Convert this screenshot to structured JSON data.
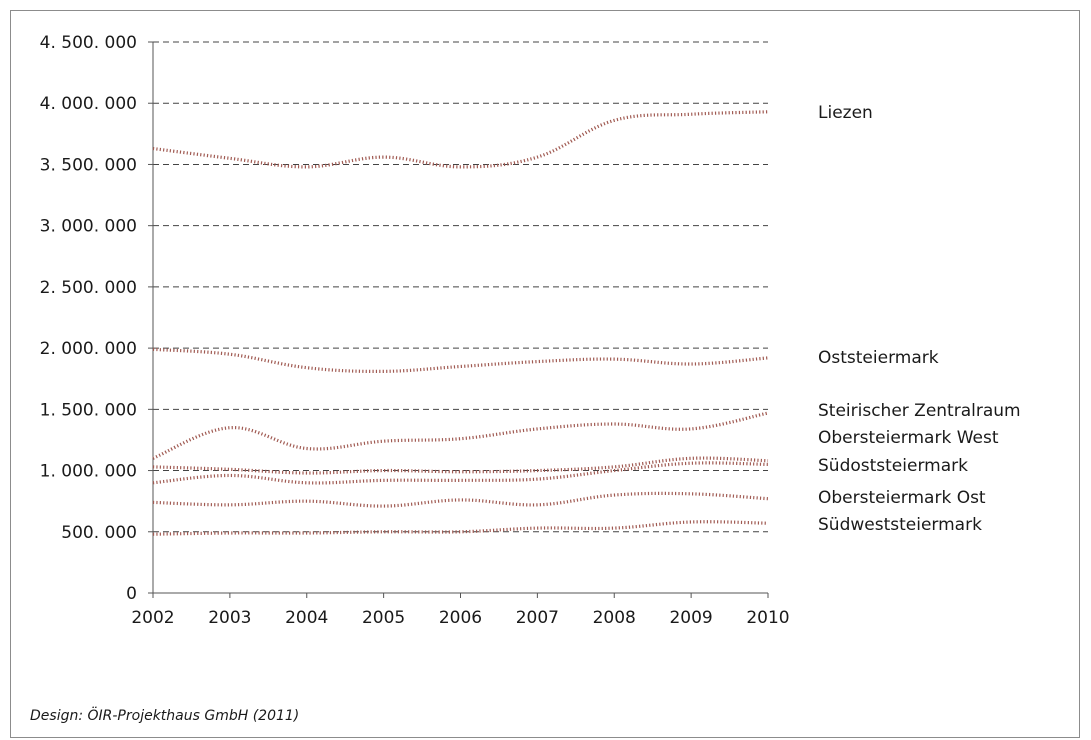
{
  "source_note": "Design: ÖIR-Projekthaus GmbH (2011)",
  "colors": {
    "series_line": "#a05a52",
    "grid": "#444444",
    "axis": "#555555"
  },
  "chart_data": {
    "type": "line",
    "title": "",
    "xlabel": "",
    "ylabel": "",
    "x": [
      2002,
      2003,
      2004,
      2005,
      2006,
      2007,
      2008,
      2009,
      2010
    ],
    "x_tick_labels": [
      "2002",
      "2003",
      "2004",
      "2005",
      "2006",
      "2007",
      "2008",
      "2009",
      "2010"
    ],
    "ylim": [
      0,
      4500000
    ],
    "y_ticks": [
      0,
      500000,
      1000000,
      1500000,
      2000000,
      2500000,
      3000000,
      3500000,
      4000000,
      4500000
    ],
    "y_tick_labels": [
      "0",
      "500. 000",
      "1. 000. 000",
      "1. 500. 000",
      "2. 000. 000",
      "2. 500. 000",
      "3. 000. 000",
      "3. 500. 000",
      "4. 000. 000",
      "4. 500. 000"
    ],
    "grid": "horizontal dashed",
    "legend": "direct labels right of lines",
    "series": [
      {
        "name": "Liezen",
        "values": [
          3630000,
          3550000,
          3480000,
          3560000,
          3480000,
          3560000,
          3860000,
          3910000,
          3930000
        ]
      },
      {
        "name": "Oststeiermark",
        "values": [
          1990000,
          1950000,
          1840000,
          1810000,
          1850000,
          1890000,
          1910000,
          1870000,
          1920000
        ]
      },
      {
        "name": "Steirischer Zentralraum",
        "values": [
          1100000,
          1350000,
          1180000,
          1240000,
          1260000,
          1340000,
          1380000,
          1340000,
          1470000
        ]
      },
      {
        "name": "Obersteiermark West",
        "values": [
          1030000,
          1010000,
          980000,
          1000000,
          990000,
          1000000,
          1030000,
          1100000,
          1080000
        ]
      },
      {
        "name": "Südoststeiermark",
        "values": [
          900000,
          960000,
          900000,
          920000,
          920000,
          930000,
          1000000,
          1060000,
          1050000
        ]
      },
      {
        "name": "Obersteiermark Ost",
        "values": [
          740000,
          720000,
          750000,
          710000,
          760000,
          720000,
          800000,
          810000,
          770000
        ]
      },
      {
        "name": "Südweststeiermark",
        "values": [
          480000,
          490000,
          490000,
          500000,
          500000,
          530000,
          530000,
          580000,
          570000
        ]
      }
    ]
  }
}
